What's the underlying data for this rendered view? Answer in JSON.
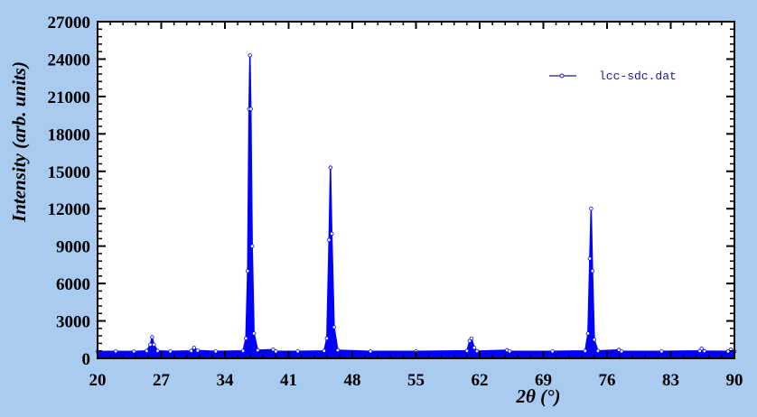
{
  "chart_data": {
    "type": "line",
    "title": "",
    "xlabel": "2θ (°)",
    "ylabel": "Intensity (arb. units)",
    "xlim": [
      20,
      90
    ],
    "ylim": [
      0,
      27000
    ],
    "xticks": [
      20,
      27,
      34,
      41,
      48,
      55,
      62,
      69,
      76,
      83,
      90
    ],
    "yticks": [
      0,
      3000,
      6000,
      9000,
      12000,
      15000,
      18000,
      21000,
      24000,
      27000
    ],
    "grid": false,
    "legend_position": "top-right",
    "colors": {
      "series": "#0000ff",
      "background": "#a9cbef",
      "plot_bg": "#ffffff"
    },
    "series": [
      {
        "name": "lcc-sdc.dat",
        "x": [
          20,
          22,
          24,
          25.4,
          25.8,
          26.0,
          26.2,
          26.6,
          28,
          30.3,
          30.6,
          31.0,
          33,
          36.0,
          36.3,
          36.5,
          36.65,
          36.75,
          36.85,
          37.0,
          37.2,
          37.6,
          39.3,
          39.6,
          42,
          44.9,
          45.2,
          45.45,
          45.6,
          45.75,
          46.0,
          46.4,
          50,
          55,
          60.6,
          60.9,
          61.1,
          61.4,
          61.7,
          65.0,
          65.3,
          70,
          73.6,
          73.9,
          74.1,
          74.25,
          74.4,
          74.6,
          75.0,
          77.3,
          77.6,
          82,
          86.2,
          86.4,
          86.7,
          89.3,
          89.6,
          90
        ],
        "y": [
          550,
          560,
          550,
          600,
          1100,
          1700,
          1100,
          600,
          560,
          600,
          850,
          620,
          560,
          600,
          1600,
          7000,
          20000,
          24300,
          20000,
          9000,
          2000,
          650,
          700,
          560,
          560,
          600,
          1600,
          9500,
          15300,
          10000,
          2500,
          650,
          560,
          560,
          600,
          1400,
          1600,
          850,
          580,
          650,
          560,
          560,
          600,
          2000,
          8000,
          12000,
          7000,
          1500,
          600,
          680,
          560,
          560,
          600,
          780,
          580,
          560,
          700,
          560
        ]
      }
    ]
  }
}
